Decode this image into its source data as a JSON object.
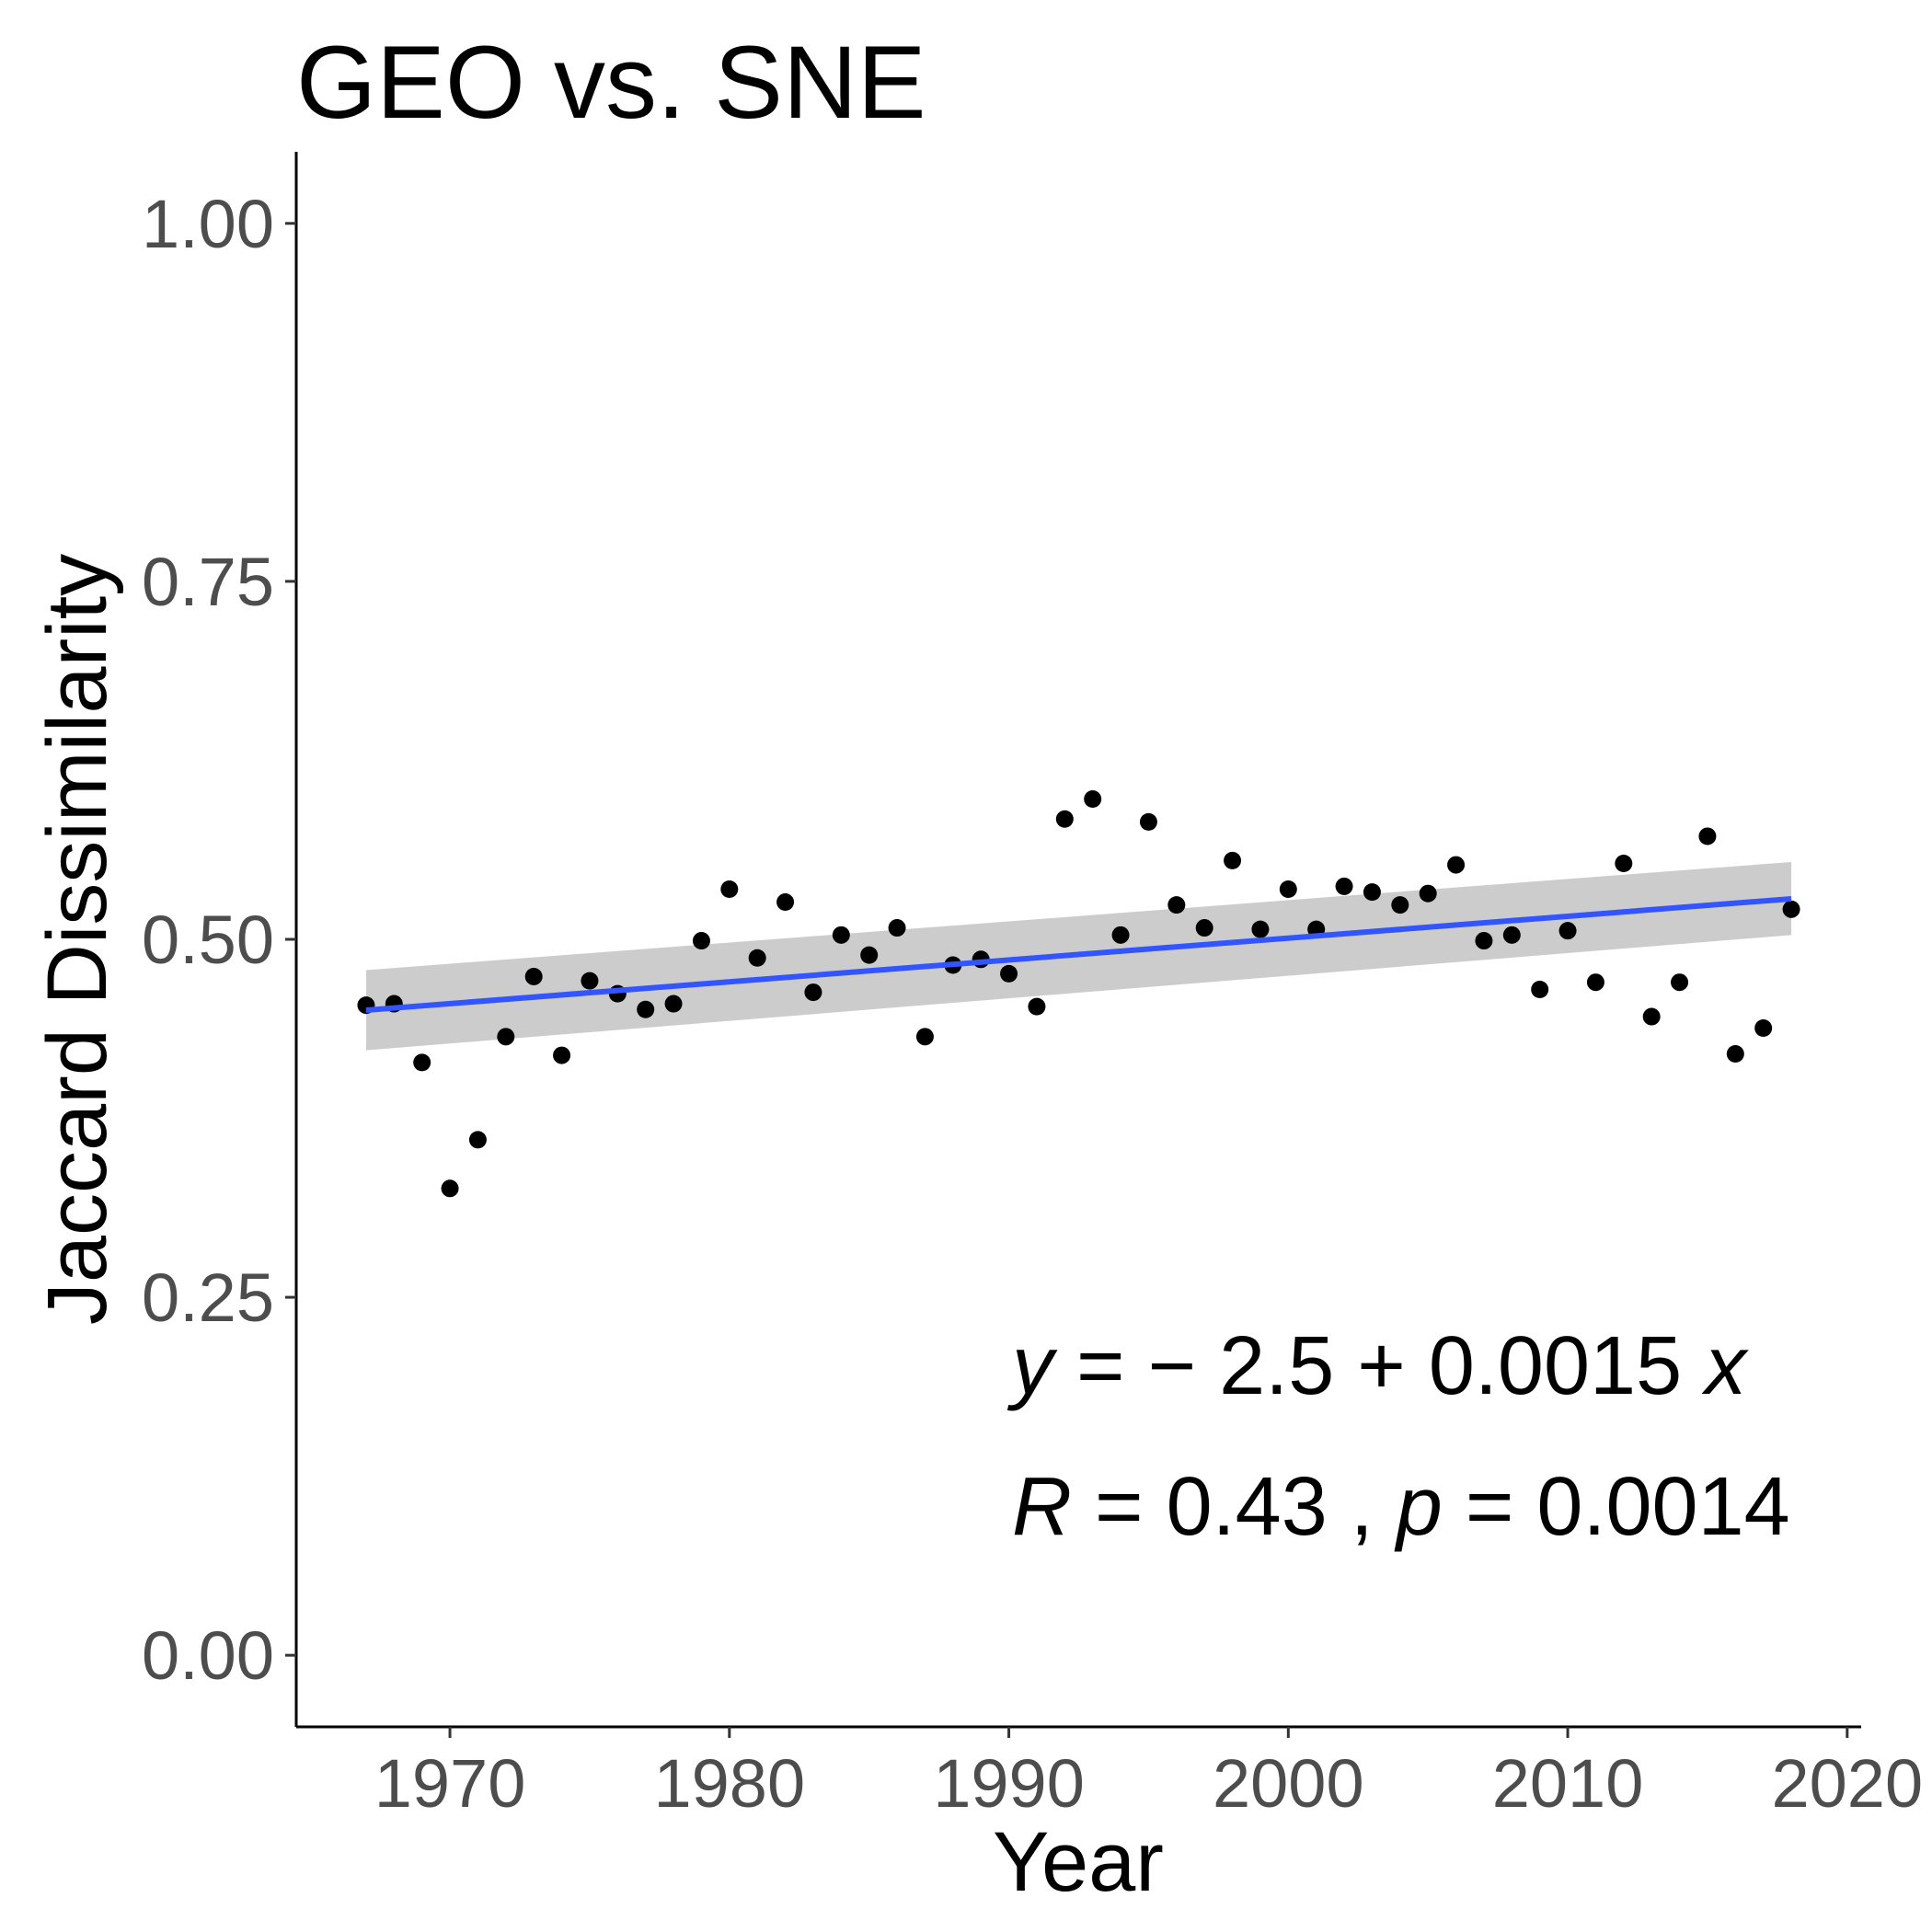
{
  "chart_data": {
    "type": "scatter",
    "title": "GEO vs. SNE",
    "xlabel": "Year",
    "ylabel": "Jaccard Dissimilarity",
    "xlim": [
      1964.5,
      2020.5
    ],
    "ylim": [
      -0.05,
      1.05
    ],
    "x_ticks": [
      1970,
      1980,
      1990,
      2000,
      2010,
      2020
    ],
    "y_ticks": [
      0.0,
      0.25,
      0.5,
      0.75,
      1.0
    ],
    "y_tick_labels": [
      "0.00",
      "0.25",
      "0.50",
      "0.75",
      "1.00"
    ],
    "grid": false,
    "points": [
      {
        "x": 1967,
        "y": 0.454
      },
      {
        "x": 1968,
        "y": 0.455
      },
      {
        "x": 1969,
        "y": 0.414
      },
      {
        "x": 1970,
        "y": 0.326
      },
      {
        "x": 1971,
        "y": 0.36
      },
      {
        "x": 1972,
        "y": 0.432
      },
      {
        "x": 1973,
        "y": 0.474
      },
      {
        "x": 1974,
        "y": 0.419
      },
      {
        "x": 1975,
        "y": 0.471
      },
      {
        "x": 1976,
        "y": 0.462
      },
      {
        "x": 1977,
        "y": 0.451
      },
      {
        "x": 1978,
        "y": 0.455
      },
      {
        "x": 1979,
        "y": 0.499
      },
      {
        "x": 1980,
        "y": 0.535
      },
      {
        "x": 1981,
        "y": 0.487
      },
      {
        "x": 1982,
        "y": 0.526
      },
      {
        "x": 1983,
        "y": 0.463
      },
      {
        "x": 1984,
        "y": 0.503
      },
      {
        "x": 1985,
        "y": 0.489
      },
      {
        "x": 1986,
        "y": 0.508
      },
      {
        "x": 1987,
        "y": 0.432
      },
      {
        "x": 1988,
        "y": 0.482
      },
      {
        "x": 1989,
        "y": 0.486
      },
      {
        "x": 1990,
        "y": 0.476
      },
      {
        "x": 1991,
        "y": 0.453
      },
      {
        "x": 1992,
        "y": 0.584
      },
      {
        "x": 1993,
        "y": 0.598
      },
      {
        "x": 1994,
        "y": 0.503
      },
      {
        "x": 1995,
        "y": 0.582
      },
      {
        "x": 1996,
        "y": 0.524
      },
      {
        "x": 1997,
        "y": 0.508
      },
      {
        "x": 1998,
        "y": 0.555
      },
      {
        "x": 1999,
        "y": 0.507
      },
      {
        "x": 2000,
        "y": 0.535
      },
      {
        "x": 2001,
        "y": 0.507
      },
      {
        "x": 2002,
        "y": 0.537
      },
      {
        "x": 2003,
        "y": 0.533
      },
      {
        "x": 2004,
        "y": 0.524
      },
      {
        "x": 2005,
        "y": 0.532
      },
      {
        "x": 2006,
        "y": 0.552
      },
      {
        "x": 2007,
        "y": 0.499
      },
      {
        "x": 2008,
        "y": 0.503
      },
      {
        "x": 2009,
        "y": 0.465
      },
      {
        "x": 2010,
        "y": 0.506
      },
      {
        "x": 2011,
        "y": 0.47
      },
      {
        "x": 2012,
        "y": 0.553
      },
      {
        "x": 2013,
        "y": 0.446
      },
      {
        "x": 2014,
        "y": 0.47
      },
      {
        "x": 2015,
        "y": 0.572
      },
      {
        "x": 2016,
        "y": 0.42
      },
      {
        "x": 2017,
        "y": 0.438
      },
      {
        "x": 2018,
        "y": 0.521
      }
    ],
    "fit": {
      "x": [
        1967,
        2018
      ],
      "y": [
        0.4505,
        0.5283
      ],
      "ci_lower": [
        0.4225,
        0.503
      ],
      "ci_upper": [
        0.4785,
        0.554
      ],
      "color": "#3355ff",
      "ci_color": "#cccccc"
    },
    "annotations": {
      "equation": "y = − 2.5 + 0.0015 x",
      "stats": "R = 0.43 , p = 0.0014"
    },
    "point_color": "#000000"
  }
}
